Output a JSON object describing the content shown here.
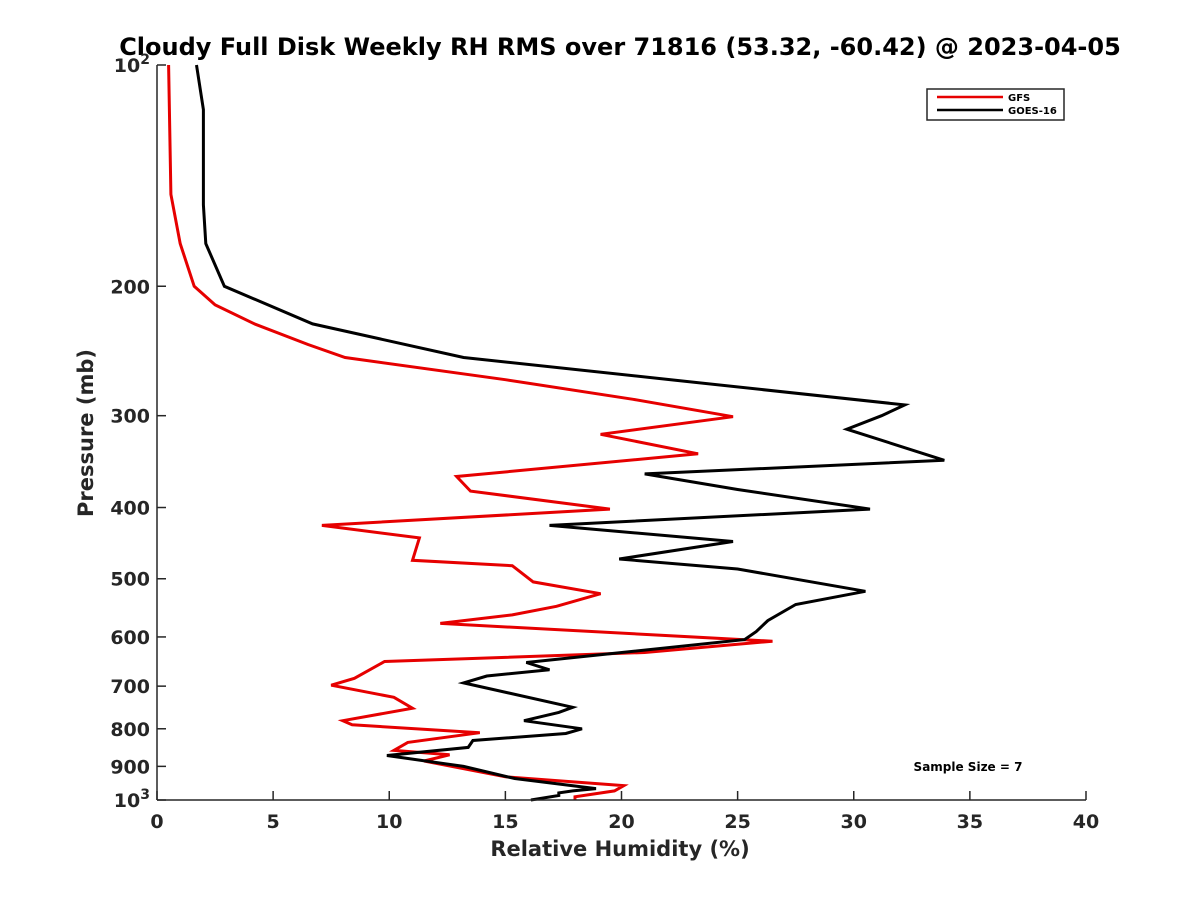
{
  "chart_data": {
    "type": "line",
    "title": "Cloudy Full Disk Weekly RH RMS over 71816 (53.32, -60.42) @ 2023-04-05",
    "xlabel": "Relative Humidity (%)",
    "ylabel": "Pressure (mb)",
    "xlim": [
      0,
      40
    ],
    "ylim": [
      1000,
      100
    ],
    "yscale": "log",
    "y_reversed": true,
    "grid": false,
    "legend_position": "top-right",
    "x_ticks": [
      "0",
      "5",
      "10",
      "15",
      "20",
      "25",
      "30",
      "35",
      "40"
    ],
    "x_tick_values": [
      0,
      5,
      10,
      15,
      20,
      25,
      30,
      35,
      40
    ],
    "y_ticks": [
      {
        "value": 100,
        "base": "10",
        "exp": "2",
        "label": ""
      },
      {
        "value": 200,
        "label": "200"
      },
      {
        "value": 300,
        "label": "300"
      },
      {
        "value": 400,
        "label": "400"
      },
      {
        "value": 500,
        "label": "500"
      },
      {
        "value": 600,
        "label": "600"
      },
      {
        "value": 700,
        "label": "700"
      },
      {
        "value": 800,
        "label": "800"
      },
      {
        "value": 900,
        "label": "900"
      },
      {
        "value": 1000,
        "base": "10",
        "exp": "3",
        "label": ""
      }
    ],
    "series": [
      {
        "name": "GFS",
        "color": "#e60000",
        "points": [
          [
            0.5,
            100
          ],
          [
            0.6,
            150
          ],
          [
            1.0,
            175
          ],
          [
            1.6,
            200
          ],
          [
            2.5,
            212
          ],
          [
            4.2,
            225
          ],
          [
            6.5,
            240
          ],
          [
            8.1,
            250
          ],
          [
            15.0,
            268
          ],
          [
            20.5,
            285
          ],
          [
            24.8,
            301
          ],
          [
            19.1,
            318
          ],
          [
            23.3,
            338
          ],
          [
            12.9,
            363
          ],
          [
            13.5,
            380
          ],
          [
            19.5,
            402
          ],
          [
            7.1,
            423
          ],
          [
            11.3,
            440
          ],
          [
            11.0,
            472
          ],
          [
            15.3,
            480
          ],
          [
            16.2,
            505
          ],
          [
            19.1,
            524
          ],
          [
            17.2,
            545
          ],
          [
            15.3,
            560
          ],
          [
            12.2,
            575
          ],
          [
            26.5,
            608
          ],
          [
            21.0,
            630
          ],
          [
            9.8,
            648
          ],
          [
            8.5,
            683
          ],
          [
            7.5,
            698
          ],
          [
            10.2,
            725
          ],
          [
            11.0,
            750
          ],
          [
            8.0,
            780
          ],
          [
            8.4,
            790
          ],
          [
            13.9,
            810
          ],
          [
            10.8,
            835
          ],
          [
            10.2,
            856
          ],
          [
            12.6,
            868
          ],
          [
            11.5,
            885
          ],
          [
            15.0,
            930
          ],
          [
            20.1,
            956
          ],
          [
            19.7,
            972
          ],
          [
            18.0,
            990
          ],
          [
            18.0,
            1000
          ]
        ]
      },
      {
        "name": "GOES-16",
        "color": "#000000",
        "points": [
          [
            1.7,
            100
          ],
          [
            2.0,
            115
          ],
          [
            2.0,
            155
          ],
          [
            2.1,
            175
          ],
          [
            2.9,
            200
          ],
          [
            6.7,
            225
          ],
          [
            13.2,
            250
          ],
          [
            32.2,
            290
          ],
          [
            31.2,
            300
          ],
          [
            29.7,
            313
          ],
          [
            33.9,
            345
          ],
          [
            21.0,
            360
          ],
          [
            25.0,
            378
          ],
          [
            30.7,
            402
          ],
          [
            16.9,
            423
          ],
          [
            24.8,
            445
          ],
          [
            19.9,
            470
          ],
          [
            25.0,
            485
          ],
          [
            30.5,
            520
          ],
          [
            27.5,
            542
          ],
          [
            26.3,
            570
          ],
          [
            25.8,
            590
          ],
          [
            25.3,
            605
          ],
          [
            15.9,
            650
          ],
          [
            16.9,
            665
          ],
          [
            14.2,
            678
          ],
          [
            13.2,
            693
          ],
          [
            17.9,
            748
          ],
          [
            17.3,
            760
          ],
          [
            15.8,
            780
          ],
          [
            18.3,
            800
          ],
          [
            17.6,
            812
          ],
          [
            13.6,
            830
          ],
          [
            13.4,
            848
          ],
          [
            9.9,
            870
          ],
          [
            13.2,
            900
          ],
          [
            15.4,
            935
          ],
          [
            18.9,
            965
          ],
          [
            17.9,
            972
          ],
          [
            17.3,
            978
          ],
          [
            17.3,
            986
          ],
          [
            16.1,
            1000
          ]
        ]
      }
    ],
    "annotations": [
      {
        "text": "Sample Size = 7"
      }
    ]
  },
  "legend": {
    "items": [
      {
        "label": "GFS",
        "color": "#e60000"
      },
      {
        "label": "GOES-16",
        "color": "#000000"
      }
    ]
  }
}
